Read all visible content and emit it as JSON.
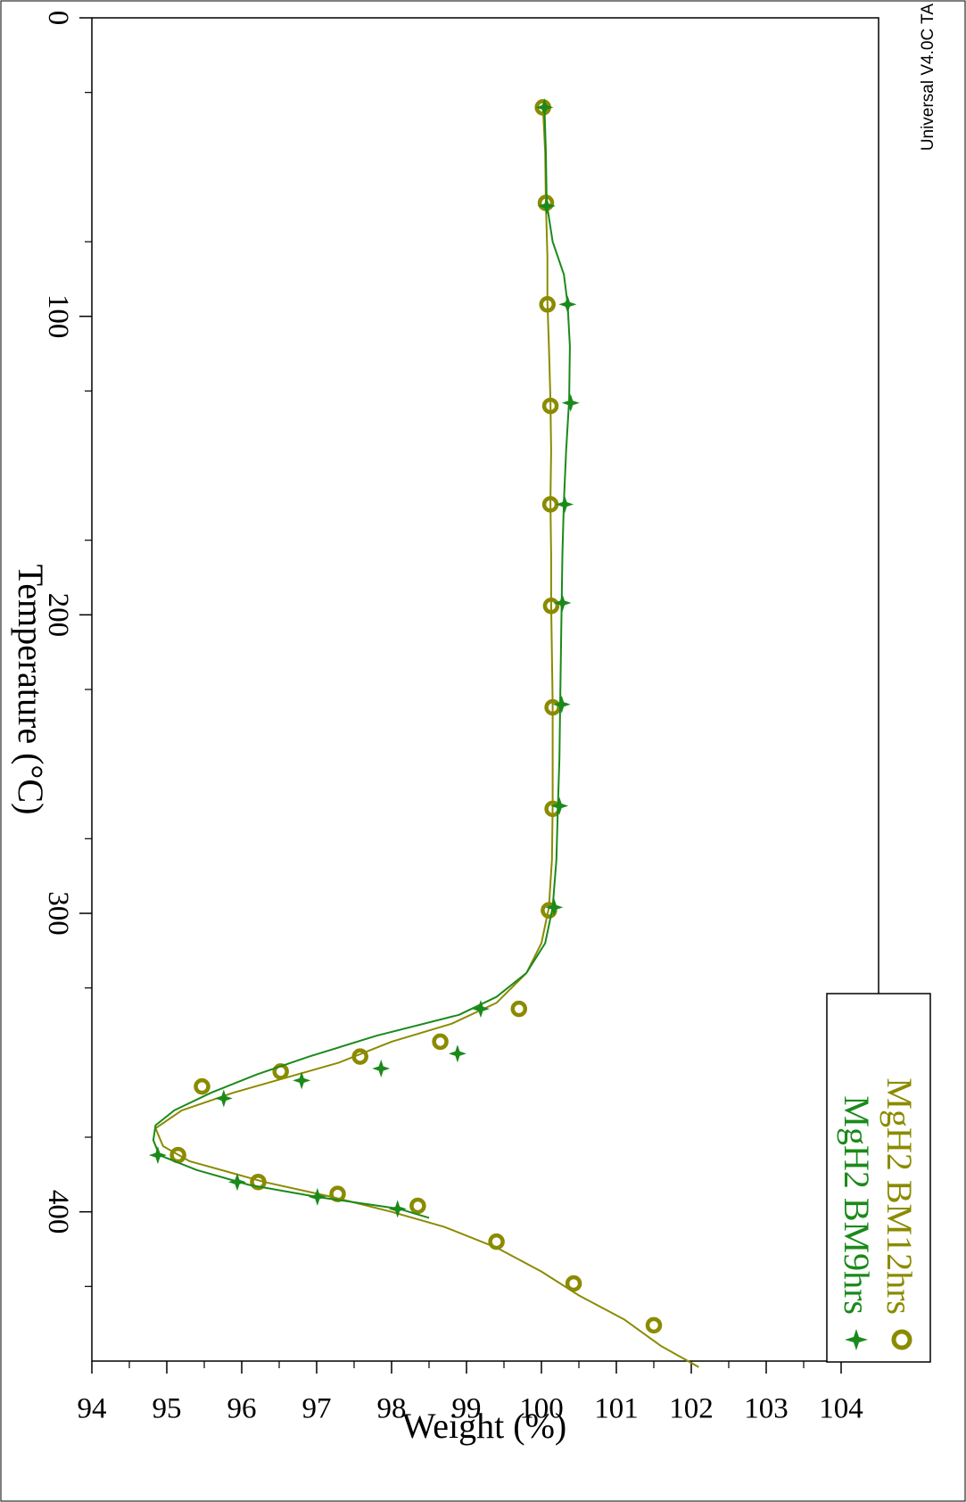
{
  "software_label": "Universal V4.0C TA",
  "chart_data": {
    "type": "line",
    "xlabel": "Temperature (°C)",
    "ylabel": "Weight (%)",
    "xlim": [
      0,
      450
    ],
    "ylim": [
      94,
      104.5
    ],
    "x_ticks": [
      0,
      100,
      200,
      300,
      400
    ],
    "y_ticks": [
      94,
      95,
      96,
      97,
      98,
      99,
      100,
      101,
      102,
      103,
      104
    ],
    "grid": false,
    "legend_position": "top-left",
    "series": [
      {
        "name": "MgH2 BM12hrs",
        "color": "#8b8b00",
        "marker": "circle",
        "points": [
          [
            30,
            100.02
          ],
          [
            45,
            100.05
          ],
          [
            62,
            100.06
          ],
          [
            80,
            100.08
          ],
          [
            95,
            100.08
          ],
          [
            110,
            100.1
          ],
          [
            128,
            100.12
          ],
          [
            145,
            100.13
          ],
          [
            162,
            100.12
          ],
          [
            180,
            100.13
          ],
          [
            196,
            100.13
          ],
          [
            214,
            100.14
          ],
          [
            230,
            100.15
          ],
          [
            248,
            100.15
          ],
          [
            264,
            100.15
          ],
          [
            282,
            100.14
          ],
          [
            298,
            100.1
          ],
          [
            310,
            100.0
          ],
          [
            320,
            99.8
          ],
          [
            330,
            99.4
          ],
          [
            337,
            98.8
          ],
          [
            343,
            98.0
          ],
          [
            350,
            97.3
          ],
          [
            355,
            96.6
          ],
          [
            360,
            95.9
          ],
          [
            366,
            95.2
          ],
          [
            372,
            94.85
          ],
          [
            378,
            94.95
          ],
          [
            383,
            95.3
          ],
          [
            390,
            96.3
          ],
          [
            395,
            97.2
          ],
          [
            400,
            98.0
          ],
          [
            405,
            98.7
          ],
          [
            412,
            99.4
          ],
          [
            420,
            100.0
          ],
          [
            428,
            100.5
          ],
          [
            436,
            101.1
          ],
          [
            445,
            101.6
          ],
          [
            452,
            102.1
          ]
        ],
        "markers": [
          [
            30,
            100.02
          ],
          [
            62,
            100.06
          ],
          [
            96,
            100.08
          ],
          [
            130,
            100.12
          ],
          [
            163,
            100.12
          ],
          [
            197,
            100.13
          ],
          [
            231,
            100.15
          ],
          [
            265,
            100.15
          ],
          [
            299,
            100.1
          ],
          [
            332,
            99.7
          ],
          [
            343,
            98.65
          ],
          [
            348,
            97.58
          ],
          [
            353,
            96.52
          ],
          [
            358,
            95.47
          ],
          [
            381,
            95.15
          ],
          [
            390,
            96.22
          ],
          [
            394,
            97.28
          ],
          [
            398,
            98.35
          ],
          [
            410,
            99.4
          ],
          [
            424,
            100.43
          ],
          [
            438,
            101.5
          ]
        ]
      },
      {
        "name": "MgH2 BM9hrs",
        "color": "#1a8a1a",
        "marker": "star",
        "points": [
          [
            30,
            100.04
          ],
          [
            45,
            100.06
          ],
          [
            62,
            100.07
          ],
          [
            75,
            100.15
          ],
          [
            86,
            100.3
          ],
          [
            96,
            100.35
          ],
          [
            110,
            100.38
          ],
          [
            128,
            100.37
          ],
          [
            145,
            100.33
          ],
          [
            162,
            100.3
          ],
          [
            180,
            100.28
          ],
          [
            196,
            100.27
          ],
          [
            214,
            100.26
          ],
          [
            230,
            100.25
          ],
          [
            248,
            100.24
          ],
          [
            264,
            100.22
          ],
          [
            282,
            100.2
          ],
          [
            298,
            100.15
          ],
          [
            310,
            100.05
          ],
          [
            320,
            99.8
          ],
          [
            328,
            99.4
          ],
          [
            334,
            98.9
          ],
          [
            341,
            97.8
          ],
          [
            348,
            96.9
          ],
          [
            354,
            96.2
          ],
          [
            360,
            95.6
          ],
          [
            366,
            95.1
          ],
          [
            371,
            94.85
          ],
          [
            376,
            94.82
          ],
          [
            381,
            94.9
          ],
          [
            386,
            95.4
          ],
          [
            391,
            96.1
          ],
          [
            395,
            97.0
          ],
          [
            399,
            98.1
          ],
          [
            402,
            98.5
          ]
        ],
        "markers": [
          [
            30,
            100.04
          ],
          [
            63,
            100.07
          ],
          [
            96,
            100.35
          ],
          [
            129,
            100.39
          ],
          [
            163,
            100.31
          ],
          [
            196,
            100.28
          ],
          [
            230,
            100.27
          ],
          [
            264,
            100.24
          ],
          [
            298,
            100.17
          ],
          [
            332,
            99.19
          ],
          [
            347,
            98.88
          ],
          [
            352,
            97.86
          ],
          [
            356,
            96.8
          ],
          [
            362,
            95.76
          ],
          [
            381,
            94.88
          ],
          [
            390,
            95.94
          ],
          [
            395,
            97.01
          ],
          [
            399,
            98.08
          ]
        ]
      }
    ]
  }
}
